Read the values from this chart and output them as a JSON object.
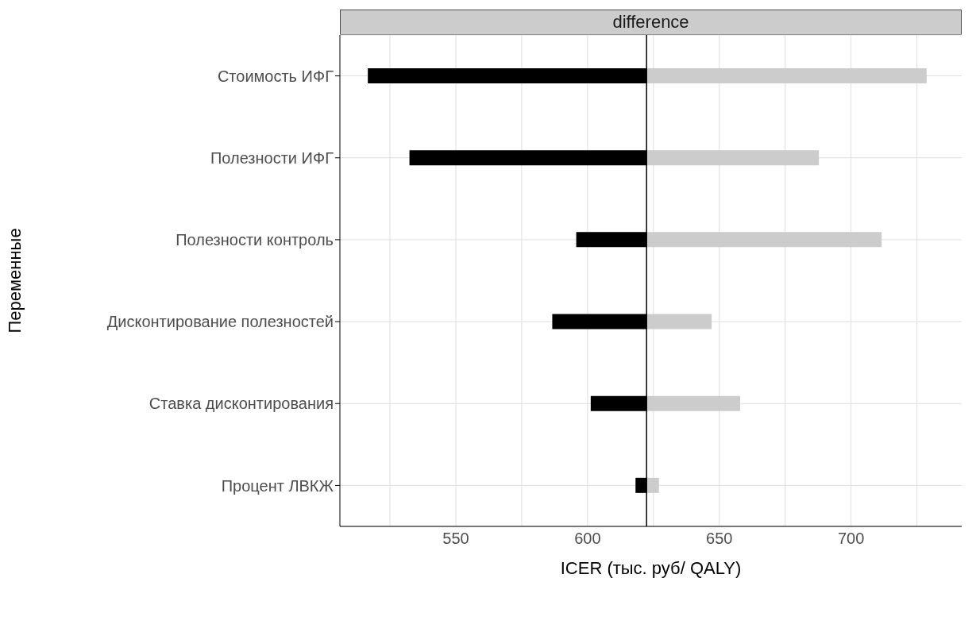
{
  "chart_data": {
    "type": "bar",
    "orientation": "horizontal",
    "title": "difference",
    "xlabel": "ICER (тыс. руб/ QALY)",
    "ylabel": "Переменные",
    "categories": [
      "Стоимость ИФГ",
      "Полезности ИФГ",
      "Полезности контроль",
      "Дисконтирование полезностей",
      "Ставка дисконтирования",
      "Процент ЛВКЖ"
    ],
    "series": [
      {
        "color": "#000000",
        "base": [
          516.6,
          532.4,
          595.7,
          586.6,
          601.2,
          618.2
        ],
        "values": [
          105.8,
          90.0,
          26.7,
          35.8,
          21.2,
          4.2
        ]
      },
      {
        "color": "#cccccc",
        "base": [
          622.4,
          622.4,
          622.4,
          622.4,
          622.4,
          622.4
        ],
        "values": [
          106.3,
          65.4,
          89.2,
          24.7,
          35.5,
          4.7
        ]
      }
    ],
    "xlim": [
      506,
      742
    ],
    "xticks": [
      {
        "value": 525,
        "label": null
      },
      550,
      {
        "value": 575,
        "label": null
      },
      600,
      {
        "value": 625,
        "label": null
      },
      650,
      {
        "value": 675,
        "label": null
      },
      700,
      {
        "value": 725,
        "label": null
      }
    ],
    "ref_lines": [
      {
        "axis": "x",
        "value": 622.4,
        "color": "#000000"
      }
    ],
    "grid": true
  }
}
